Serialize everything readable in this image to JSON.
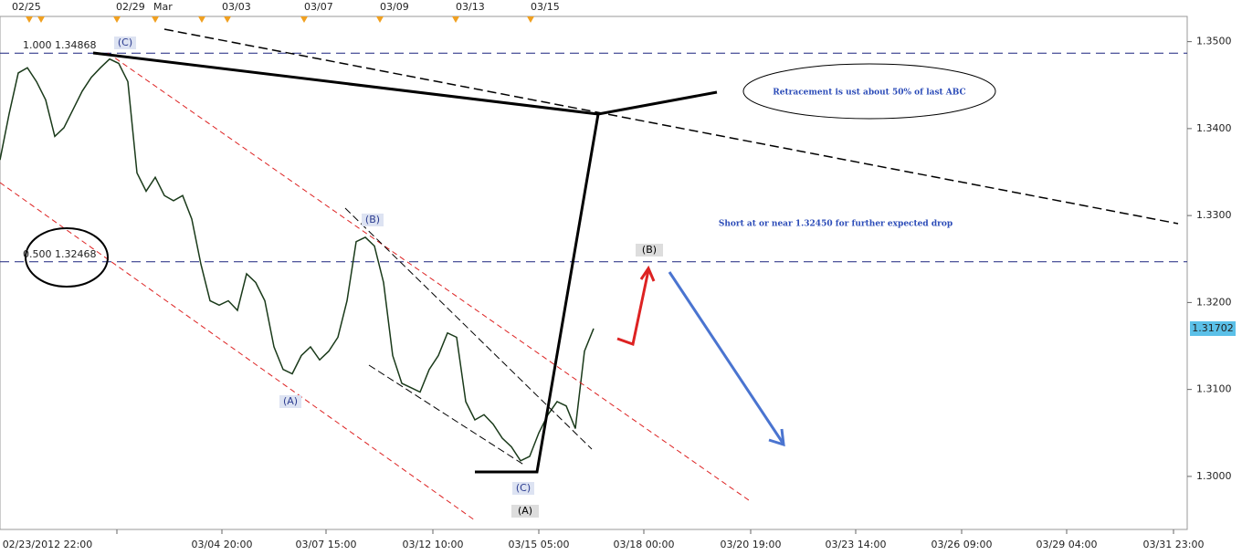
{
  "chart_data": {
    "type": "line",
    "color": "#1a3a1a",
    "values": [
      1.3364,
      1.3417,
      1.3464,
      1.347,
      1.3454,
      1.3433,
      1.3391,
      1.3401,
      1.3422,
      1.3443,
      1.3459,
      1.347,
      1.348,
      1.3475,
      1.3454,
      1.3349,
      1.3328,
      1.3344,
      1.3323,
      1.3317,
      1.3323,
      1.3296,
      1.3244,
      1.3202,
      1.3197,
      1.3202,
      1.3191,
      1.3233,
      1.3223,
      1.3202,
      1.3149,
      1.3123,
      1.3118,
      1.3139,
      1.3149,
      1.3134,
      1.3144,
      1.316,
      1.3202,
      1.327,
      1.3275,
      1.3265,
      1.3223,
      1.3139,
      1.3107,
      1.3102,
      1.3097,
      1.3123,
      1.3139,
      1.3165,
      1.316,
      1.3086,
      1.3065,
      1.3071,
      1.306,
      1.3044,
      1.3034,
      1.3018,
      1.3023,
      1.305,
      1.3071,
      1.3086,
      1.3081,
      1.3055,
      1.3144,
      1.317
    ],
    "ylim": [
      1.2939,
      1.3529
    ],
    "yticks": [
      {
        "value": 1.3,
        "label": "1.3000"
      },
      {
        "value": 1.31,
        "label": "1.3100"
      },
      {
        "value": 1.32,
        "label": "1.3200"
      },
      {
        "value": 1.33,
        "label": "1.3300"
      },
      {
        "value": 1.34,
        "label": "1.3400"
      },
      {
        "value": 1.35,
        "label": "1.3500"
      }
    ],
    "x_labels": [
      "02/23/2012 22:00",
      "03/04 20:00",
      "03/07 15:00",
      "03/12 10:00",
      "03/15 05:00",
      "03/18 00:00",
      "03/20 19:00",
      "03/23 14:00",
      "03/26 09:00",
      "03/29 04:00",
      "03/31 23:00"
    ],
    "top_labels": [
      "02/25",
      "02/29",
      "Mar",
      "03/03",
      "03/07",
      "03/09",
      "03/13",
      "03/15"
    ],
    "levels": [
      {
        "value": 1.34868,
        "label": "1.000 1.34868"
      },
      {
        "value": 1.32468,
        "label": "0.500 1.32468"
      }
    ],
    "level_color": "#1a237e",
    "last_price": 1.31702,
    "wave_labels": [
      "(C)",
      "(B)",
      "(A)",
      "(C)",
      "(A)",
      "(B)"
    ],
    "annotations": [
      "Retracement is ust about 50% of last ABC",
      "Short at or near 1.32450 for further expected drop"
    ]
  }
}
